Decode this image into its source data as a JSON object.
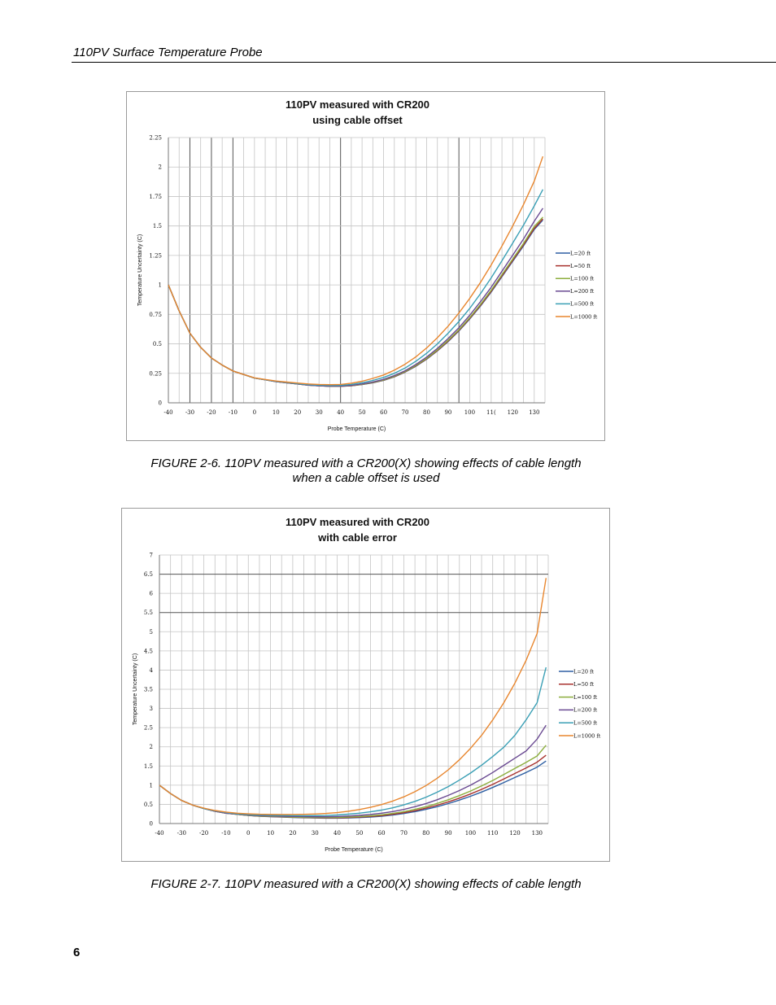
{
  "header": {
    "running_title": "110PV Surface Temperature Probe"
  },
  "figures": [
    {
      "id": "fig-2-6",
      "caption_lines": [
        "FIGURE 2-6.  110PV measured with a CR200(X) showing effects of cable length",
        "when a cable offset is used"
      ]
    },
    {
      "id": "fig-2-7",
      "caption_lines": [
        "FIGURE 2-7.  110PV measured with a CR200(X) showing effects of cable length"
      ]
    }
  ],
  "footer": {
    "page_number": "6"
  },
  "chart_data": [
    {
      "type": "line",
      "title_lines": [
        "110PV measured with CR200",
        "using cable offset"
      ],
      "xlabel": "Probe Temperature  (C)",
      "ylabel": "Temperature Uncertainty  (C)",
      "xlim": [
        -40,
        135
      ],
      "ylim": [
        0,
        2.25
      ],
      "x_tick_labels": [
        "-40",
        "-30",
        "-20",
        "-10",
        "0",
        "10",
        "20",
        "30",
        "40",
        "50",
        "60",
        "70",
        "80",
        "90",
        "100",
        "11(",
        "120",
        "130"
      ],
      "y_tick_labels": [
        "0",
        "0.25",
        "0.5",
        "0.75",
        "1",
        "1.25",
        "1.5",
        "1.75",
        "2",
        "2.25"
      ],
      "grid": true,
      "legend_position": "right",
      "x": [
        -40,
        -35,
        -30,
        -25,
        -20,
        -15,
        -10,
        -5,
        0,
        5,
        10,
        15,
        20,
        25,
        30,
        35,
        40,
        45,
        50,
        55,
        60,
        65,
        70,
        75,
        80,
        85,
        90,
        95,
        100,
        105,
        110,
        115,
        120,
        125,
        130,
        134
      ],
      "series": [
        {
          "name": "L=20 ft",
          "color": "#2e5fa3",
          "values": [
            1.0,
            0.78,
            0.59,
            0.47,
            0.38,
            0.32,
            0.27,
            0.24,
            0.21,
            0.195,
            0.18,
            0.17,
            0.16,
            0.15,
            0.145,
            0.14,
            0.14,
            0.145,
            0.155,
            0.17,
            0.19,
            0.22,
            0.26,
            0.31,
            0.37,
            0.44,
            0.52,
            0.61,
            0.71,
            0.82,
            0.94,
            1.07,
            1.2,
            1.33,
            1.47,
            1.55
          ]
        },
        {
          "name": "L=50 ft",
          "color": "#a8322e",
          "values": [
            1.0,
            0.78,
            0.59,
            0.47,
            0.38,
            0.32,
            0.27,
            0.24,
            0.21,
            0.195,
            0.18,
            0.17,
            0.16,
            0.15,
            0.145,
            0.14,
            0.14,
            0.145,
            0.156,
            0.171,
            0.192,
            0.222,
            0.262,
            0.313,
            0.373,
            0.443,
            0.524,
            0.614,
            0.715,
            0.826,
            0.946,
            1.077,
            1.208,
            1.339,
            1.48,
            1.56
          ]
        },
        {
          "name": "L=100 ft",
          "color": "#8cae3e",
          "values": [
            1.0,
            0.78,
            0.59,
            0.47,
            0.38,
            0.32,
            0.27,
            0.24,
            0.21,
            0.195,
            0.18,
            0.17,
            0.16,
            0.15,
            0.145,
            0.14,
            0.141,
            0.146,
            0.157,
            0.173,
            0.194,
            0.225,
            0.265,
            0.317,
            0.377,
            0.448,
            0.53,
            0.62,
            0.722,
            0.834,
            0.955,
            1.087,
            1.219,
            1.351,
            1.495,
            1.575
          ]
        },
        {
          "name": "L=200 ft",
          "color": "#6a4a92",
          "values": [
            1.0,
            0.78,
            0.59,
            0.47,
            0.38,
            0.32,
            0.27,
            0.24,
            0.21,
            0.195,
            0.18,
            0.17,
            0.16,
            0.15,
            0.145,
            0.141,
            0.142,
            0.148,
            0.16,
            0.177,
            0.199,
            0.231,
            0.272,
            0.326,
            0.388,
            0.461,
            0.545,
            0.637,
            0.742,
            0.857,
            0.981,
            1.116,
            1.252,
            1.388,
            1.54,
            1.65
          ]
        },
        {
          "name": "L=500 ft",
          "color": "#3a9fb5",
          "values": [
            1.0,
            0.78,
            0.59,
            0.47,
            0.38,
            0.32,
            0.27,
            0.24,
            0.21,
            0.196,
            0.182,
            0.172,
            0.163,
            0.154,
            0.15,
            0.147,
            0.148,
            0.156,
            0.17,
            0.19,
            0.215,
            0.25,
            0.295,
            0.353,
            0.42,
            0.5,
            0.59,
            0.69,
            0.8,
            0.925,
            1.06,
            1.205,
            1.355,
            1.505,
            1.67,
            1.81
          ]
        },
        {
          "name": "L=1000 ft",
          "color": "#e8862e",
          "values": [
            1.0,
            0.78,
            0.59,
            0.47,
            0.38,
            0.32,
            0.27,
            0.24,
            0.212,
            0.198,
            0.185,
            0.176,
            0.168,
            0.16,
            0.156,
            0.154,
            0.156,
            0.166,
            0.183,
            0.207,
            0.236,
            0.277,
            0.327,
            0.39,
            0.465,
            0.552,
            0.65,
            0.762,
            0.885,
            1.02,
            1.17,
            1.33,
            1.5,
            1.68,
            1.88,
            2.09
          ]
        }
      ]
    },
    {
      "type": "line",
      "title_lines": [
        "110PV measured with CR200",
        "with cable error"
      ],
      "xlabel": "Probe Temperature  (C)",
      "ylabel": "Temperature Uncertainty  (C)",
      "xlim": [
        -40,
        135
      ],
      "ylim": [
        0,
        7
      ],
      "x_tick_labels": [
        "-40",
        "-30",
        "-20",
        "-10",
        "0",
        "10",
        "20",
        "30",
        "40",
        "50",
        "60",
        "70",
        "80",
        "90",
        "100",
        "110",
        "120",
        "130"
      ],
      "y_tick_labels": [
        "0",
        "0.5",
        "1",
        "1.5",
        "2",
        "2.5",
        "3",
        "3.5",
        "4",
        "4.5",
        "5",
        "5.5",
        "6",
        "6.5",
        "7"
      ],
      "grid": true,
      "legend_position": "right",
      "x": [
        -40,
        -35,
        -30,
        -25,
        -20,
        -15,
        -10,
        -5,
        0,
        5,
        10,
        15,
        20,
        25,
        30,
        35,
        40,
        45,
        50,
        55,
        60,
        65,
        70,
        75,
        80,
        85,
        90,
        95,
        100,
        105,
        110,
        115,
        120,
        125,
        130,
        134
      ],
      "series": [
        {
          "name": "L=20 ft",
          "color": "#2e5fa3",
          "values": [
            1.0,
            0.78,
            0.6,
            0.48,
            0.39,
            0.32,
            0.27,
            0.24,
            0.21,
            0.19,
            0.18,
            0.17,
            0.16,
            0.15,
            0.145,
            0.14,
            0.14,
            0.145,
            0.155,
            0.17,
            0.19,
            0.22,
            0.26,
            0.31,
            0.37,
            0.44,
            0.52,
            0.61,
            0.71,
            0.82,
            0.94,
            1.07,
            1.2,
            1.33,
            1.47,
            1.63
          ]
        },
        {
          "name": "L=50 ft",
          "color": "#a8322e",
          "values": [
            1.0,
            0.78,
            0.6,
            0.48,
            0.39,
            0.32,
            0.27,
            0.24,
            0.212,
            0.193,
            0.183,
            0.173,
            0.164,
            0.155,
            0.15,
            0.147,
            0.148,
            0.155,
            0.167,
            0.184,
            0.206,
            0.239,
            0.282,
            0.336,
            0.401,
            0.477,
            0.564,
            0.662,
            0.771,
            0.891,
            1.021,
            1.163,
            1.305,
            1.448,
            1.6,
            1.78
          ]
        },
        {
          "name": "L=100 ft",
          "color": "#8cae3e",
          "values": [
            1.0,
            0.78,
            0.6,
            0.48,
            0.39,
            0.32,
            0.27,
            0.24,
            0.214,
            0.196,
            0.187,
            0.178,
            0.17,
            0.162,
            0.158,
            0.156,
            0.159,
            0.168,
            0.182,
            0.202,
            0.227,
            0.263,
            0.31,
            0.37,
            0.44,
            0.524,
            0.62,
            0.727,
            0.847,
            0.979,
            1.123,
            1.279,
            1.436,
            1.593,
            1.76,
            2.04
          ]
        },
        {
          "name": "L=200 ft",
          "color": "#6a4a92",
          "values": [
            1.0,
            0.78,
            0.6,
            0.48,
            0.39,
            0.32,
            0.27,
            0.245,
            0.22,
            0.205,
            0.198,
            0.19,
            0.184,
            0.178,
            0.176,
            0.176,
            0.182,
            0.195,
            0.213,
            0.238,
            0.269,
            0.312,
            0.368,
            0.439,
            0.522,
            0.62,
            0.733,
            0.86,
            1.0,
            1.158,
            1.33,
            1.516,
            1.703,
            1.89,
            2.2,
            2.56
          ]
        },
        {
          "name": "L=500 ft",
          "color": "#3a9fb5",
          "values": [
            1.0,
            0.78,
            0.6,
            0.48,
            0.39,
            0.33,
            0.285,
            0.255,
            0.235,
            0.222,
            0.215,
            0.21,
            0.206,
            0.204,
            0.205,
            0.21,
            0.222,
            0.243,
            0.27,
            0.305,
            0.35,
            0.41,
            0.485,
            0.578,
            0.688,
            0.816,
            0.963,
            1.13,
            1.316,
            1.52,
            1.745,
            1.99,
            2.3,
            2.7,
            3.15,
            4.07
          ]
        },
        {
          "name": "L=1000 ft",
          "color": "#e8862e",
          "values": [
            1.0,
            0.78,
            0.6,
            0.48,
            0.4,
            0.34,
            0.3,
            0.27,
            0.252,
            0.242,
            0.237,
            0.235,
            0.236,
            0.24,
            0.248,
            0.262,
            0.285,
            0.32,
            0.365,
            0.422,
            0.495,
            0.585,
            0.695,
            0.83,
            0.99,
            1.18,
            1.4,
            1.66,
            1.96,
            2.3,
            2.7,
            3.15,
            3.66,
            4.25,
            4.95,
            6.4
          ]
        }
      ]
    }
  ]
}
